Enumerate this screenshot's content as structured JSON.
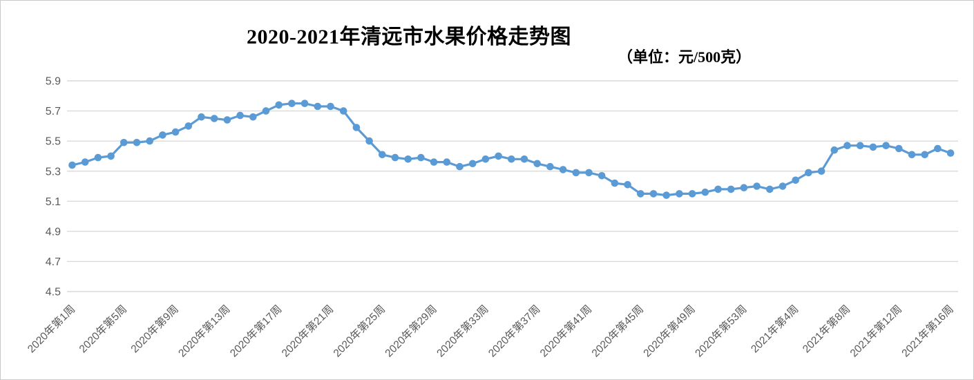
{
  "title": {
    "text": "2020-2021年清远市水果价格走势图"
  },
  "subtitle": {
    "text": "（单位：元/500克）"
  },
  "colors": {
    "line": "#5B9BD5",
    "marker": "#5B9BD5",
    "grid": "#D9D9D9",
    "axis_text": "#595959",
    "background": "#FFFFFF"
  },
  "chart_data": {
    "type": "line",
    "title": "2020-2021年清远市水果价格走势图",
    "unit_label": "（单位：元/500克）",
    "xlabel": "",
    "ylabel": "",
    "ylim": [
      4.5,
      5.9
    ],
    "y_ticks": [
      4.5,
      4.7,
      4.9,
      5.1,
      5.3,
      5.5,
      5.7,
      5.9
    ],
    "grid": true,
    "legend_position": "none",
    "marker_style": "circle",
    "x_tick_labels": [
      {
        "index": 0,
        "label": "2020年第1周"
      },
      {
        "index": 4,
        "label": "2020年第5周"
      },
      {
        "index": 8,
        "label": "2020年第9周"
      },
      {
        "index": 12,
        "label": "2020年第13周"
      },
      {
        "index": 16,
        "label": "2020年第17周"
      },
      {
        "index": 20,
        "label": "2020年第21周"
      },
      {
        "index": 24,
        "label": "2020年第25周"
      },
      {
        "index": 28,
        "label": "2020年第29周"
      },
      {
        "index": 32,
        "label": "2020年第33周"
      },
      {
        "index": 36,
        "label": "2020年第37周"
      },
      {
        "index": 40,
        "label": "2020年第41周"
      },
      {
        "index": 44,
        "label": "2020年第45周"
      },
      {
        "index": 48,
        "label": "2020年第49周"
      },
      {
        "index": 52,
        "label": "2020年第53周"
      },
      {
        "index": 56,
        "label": "2021年第4周"
      },
      {
        "index": 60,
        "label": "2021年第8周"
      },
      {
        "index": 64,
        "label": "2021年第12周"
      },
      {
        "index": 68,
        "label": "2021年第16周"
      }
    ],
    "values": [
      5.34,
      5.36,
      5.39,
      5.4,
      5.49,
      5.49,
      5.5,
      5.54,
      5.56,
      5.6,
      5.66,
      5.65,
      5.64,
      5.67,
      5.66,
      5.7,
      5.74,
      5.75,
      5.75,
      5.73,
      5.73,
      5.7,
      5.59,
      5.5,
      5.41,
      5.39,
      5.38,
      5.39,
      5.36,
      5.36,
      5.33,
      5.35,
      5.38,
      5.4,
      5.38,
      5.38,
      5.35,
      5.33,
      5.31,
      5.29,
      5.29,
      5.27,
      5.22,
      5.21,
      5.15,
      5.15,
      5.14,
      5.15,
      5.15,
      5.16,
      5.18,
      5.18,
      5.19,
      5.2,
      5.18,
      5.2,
      5.24,
      5.29,
      5.3,
      5.44,
      5.47,
      5.47,
      5.46,
      5.47,
      5.45,
      5.41,
      5.41,
      5.45,
      5.42
    ]
  }
}
